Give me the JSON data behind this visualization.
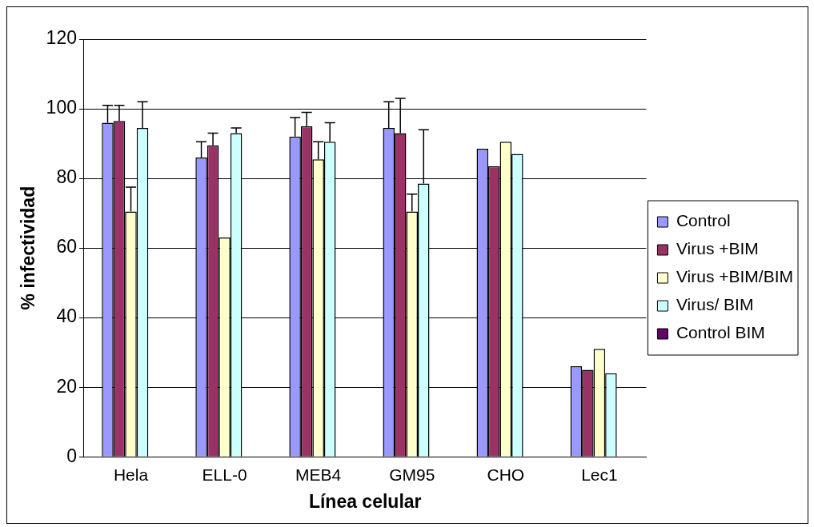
{
  "chart_data": {
    "type": "bar",
    "xlabel": "Línea celular",
    "ylabel": "% infectividad",
    "categories": [
      "Hela",
      "ELL-0",
      "MEB4",
      "GM95",
      "CHO",
      "Lec1"
    ],
    "series": [
      {
        "name": "Control",
        "color": "#9999ff",
        "values": [
          96,
          86,
          92,
          94.5,
          88.5,
          26
        ],
        "errors": [
          [
            96,
            101
          ],
          [
            86,
            90.5
          ],
          [
            92,
            97.5
          ],
          [
            94.5,
            102
          ],
          null,
          null
        ]
      },
      {
        "name": "Virus +BIM",
        "color": "#993366",
        "values": [
          96.5,
          89.5,
          95,
          93,
          83.5,
          25
        ],
        "errors": [
          [
            96.5,
            101
          ],
          [
            89.5,
            93
          ],
          [
            95,
            99
          ],
          [
            93,
            103
          ],
          null,
          null
        ]
      },
      {
        "name": "Virus +BIM/BIM",
        "color": "#ffffcc",
        "values": [
          70.5,
          63,
          85.5,
          70.5,
          90.5,
          31
        ],
        "errors": [
          [
            70.5,
            77.5
          ],
          null,
          [
            85.5,
            90.5
          ],
          [
            70.5,
            75.5
          ],
          null,
          null
        ]
      },
      {
        "name": "Virus/ BIM",
        "color": "#ccffff",
        "values": [
          94.5,
          93,
          90.5,
          78.5,
          87,
          24
        ],
        "errors": [
          [
            94.5,
            102
          ],
          [
            93,
            94.5
          ],
          [
            90.5,
            96
          ],
          [
            78.5,
            94
          ],
          null,
          null
        ]
      },
      {
        "name": "Control BIM",
        "color": "#660066",
        "values": [
          null,
          null,
          null,
          null,
          null,
          null
        ]
      }
    ],
    "ylim": [
      0,
      120
    ],
    "yticks": [
      0,
      20,
      40,
      60,
      80,
      100,
      120
    ],
    "grid": "y",
    "legend": "right"
  }
}
